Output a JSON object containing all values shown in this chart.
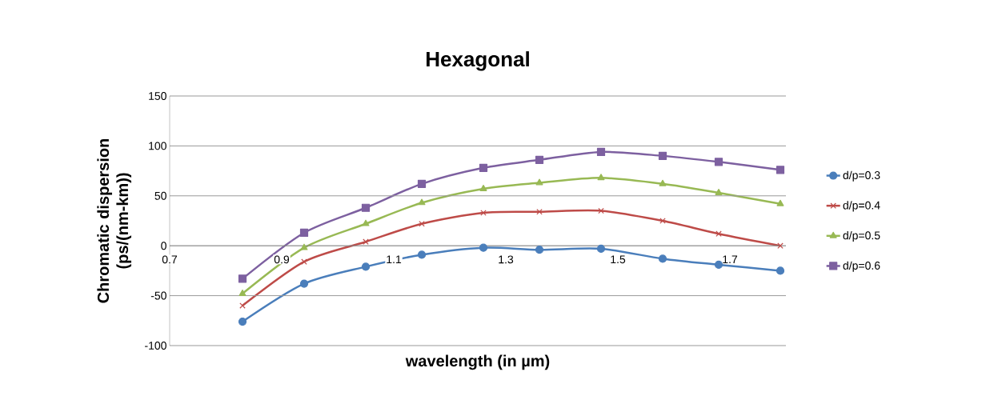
{
  "chart_data": {
    "type": "line",
    "title": "Hexagonal",
    "xlabel": "wavelength (in µm)",
    "ylabel": "Chromatic dispersion (ps/(nm-km))",
    "x": [
      0.83,
      0.94,
      1.05,
      1.15,
      1.26,
      1.36,
      1.47,
      1.58,
      1.68,
      1.79
    ],
    "series": [
      {
        "name": "d/p=0.3",
        "color": "#4a7ebb",
        "marker": "circle",
        "values": [
          -76,
          -38,
          -21,
          -9,
          -2,
          -4,
          -3,
          -13,
          -19,
          -25
        ]
      },
      {
        "name": "d/p=0.4",
        "color": "#be4b48",
        "marker": "cross",
        "values": [
          -60,
          -16,
          4,
          22,
          33,
          34,
          35,
          25,
          12,
          0
        ]
      },
      {
        "name": "d/p=0.5",
        "color": "#98b954",
        "marker": "triangle",
        "values": [
          -48,
          -2,
          22,
          43,
          57,
          63,
          68,
          62,
          53,
          42
        ]
      },
      {
        "name": "d/p=0.6",
        "color": "#7d60a0",
        "marker": "square",
        "values": [
          -33,
          13,
          38,
          62,
          78,
          86,
          94,
          90,
          84,
          76
        ]
      }
    ],
    "xlim": [
      0.7,
      1.8
    ],
    "ylim": [
      -100,
      150
    ],
    "xticks": [
      0.7,
      0.9,
      1.1,
      1.3,
      1.5,
      1.7
    ],
    "yticks": [
      -100,
      -50,
      0,
      50,
      100,
      150
    ],
    "grid": "y",
    "legend": "right",
    "line_style": "solid"
  }
}
